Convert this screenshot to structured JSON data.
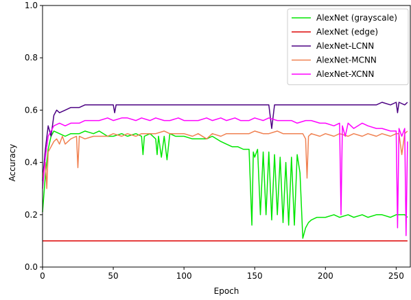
{
  "chart_data": {
    "type": "line",
    "xlabel": "Epoch",
    "ylabel": "Accuracy",
    "xlim": [
      0,
      260
    ],
    "ylim": [
      0.0,
      1.0
    ],
    "xticks": [
      0,
      50,
      100,
      150,
      200,
      250
    ],
    "xtick_labels": [
      "0",
      "50",
      "100",
      "150",
      "200",
      "250"
    ],
    "yticks": [
      0.0,
      0.2,
      0.4,
      0.6,
      0.8,
      1.0
    ],
    "ytick_labels": [
      "0.0",
      "0.2",
      "0.4",
      "0.6",
      "0.8",
      "1.0"
    ],
    "grid": false,
    "legend_position": "top-right",
    "series": [
      {
        "name": "AlexNet (grayscale)",
        "color": "#00e600",
        "x": [
          0,
          2,
          4,
          6,
          8,
          12,
          16,
          20,
          26,
          30,
          36,
          40,
          46,
          50,
          56,
          60,
          66,
          70,
          71,
          72,
          76,
          80,
          81,
          82,
          84,
          86,
          88,
          90,
          94,
          100,
          106,
          110,
          116,
          120,
          126,
          130,
          134,
          138,
          142,
          146,
          148,
          149,
          150,
          152,
          154,
          156,
          158,
          160,
          162,
          164,
          166,
          168,
          170,
          172,
          174,
          176,
          178,
          180,
          182,
          184,
          186,
          188,
          190,
          194,
          200,
          206,
          210,
          216,
          220,
          226,
          230,
          236,
          240,
          246,
          250,
          256,
          258
        ],
        "y": [
          0.21,
          0.35,
          0.45,
          0.5,
          0.52,
          0.51,
          0.5,
          0.51,
          0.51,
          0.52,
          0.51,
          0.52,
          0.5,
          0.5,
          0.51,
          0.5,
          0.51,
          0.5,
          0.43,
          0.5,
          0.51,
          0.49,
          0.43,
          0.5,
          0.42,
          0.5,
          0.41,
          0.51,
          0.5,
          0.5,
          0.49,
          0.49,
          0.49,
          0.5,
          0.48,
          0.47,
          0.46,
          0.46,
          0.45,
          0.45,
          0.16,
          0.44,
          0.42,
          0.45,
          0.2,
          0.44,
          0.2,
          0.44,
          0.18,
          0.43,
          0.2,
          0.42,
          0.17,
          0.4,
          0.16,
          0.42,
          0.16,
          0.43,
          0.36,
          0.11,
          0.15,
          0.17,
          0.18,
          0.19,
          0.19,
          0.2,
          0.19,
          0.2,
          0.19,
          0.2,
          0.19,
          0.2,
          0.2,
          0.19,
          0.2,
          0.2,
          0.19
        ]
      },
      {
        "name": "AlexNet (edge)",
        "color": "#dd0000",
        "x": [
          0,
          20,
          40,
          60,
          80,
          100,
          120,
          140,
          160,
          180,
          200,
          220,
          240,
          258
        ],
        "y": [
          0.1,
          0.1,
          0.1,
          0.1,
          0.1,
          0.1,
          0.1,
          0.1,
          0.1,
          0.1,
          0.1,
          0.1,
          0.1,
          0.1
        ]
      },
      {
        "name": "AlexNet-LCNN",
        "color": "#4b0082",
        "x": [
          0,
          2,
          4,
          6,
          8,
          10,
          12,
          16,
          20,
          26,
          30,
          36,
          40,
          46,
          50,
          51,
          52,
          56,
          60,
          66,
          70,
          76,
          80,
          86,
          90,
          96,
          100,
          106,
          110,
          116,
          120,
          126,
          130,
          136,
          140,
          146,
          150,
          156,
          160,
          162,
          164,
          166,
          170,
          176,
          180,
          186,
          190,
          196,
          200,
          206,
          210,
          216,
          220,
          226,
          230,
          236,
          240,
          246,
          250,
          251,
          252,
          256,
          258
        ],
        "y": [
          0.33,
          0.45,
          0.54,
          0.5,
          0.58,
          0.6,
          0.59,
          0.6,
          0.61,
          0.61,
          0.62,
          0.62,
          0.62,
          0.62,
          0.62,
          0.59,
          0.62,
          0.62,
          0.62,
          0.62,
          0.62,
          0.62,
          0.62,
          0.62,
          0.62,
          0.62,
          0.62,
          0.62,
          0.62,
          0.62,
          0.62,
          0.62,
          0.62,
          0.62,
          0.62,
          0.62,
          0.62,
          0.62,
          0.62,
          0.53,
          0.62,
          0.62,
          0.62,
          0.62,
          0.62,
          0.62,
          0.62,
          0.62,
          0.62,
          0.62,
          0.62,
          0.62,
          0.62,
          0.62,
          0.62,
          0.62,
          0.63,
          0.62,
          0.63,
          0.59,
          0.63,
          0.62,
          0.63
        ]
      },
      {
        "name": "AlexNet-MCNN",
        "color": "#f08050",
        "x": [
          0,
          2,
          3,
          4,
          6,
          8,
          10,
          12,
          14,
          16,
          20,
          24,
          25,
          26,
          30,
          36,
          40,
          46,
          50,
          56,
          60,
          66,
          70,
          76,
          80,
          86,
          90,
          96,
          100,
          106,
          110,
          116,
          120,
          126,
          130,
          136,
          140,
          146,
          150,
          156,
          160,
          166,
          170,
          176,
          180,
          184,
          186,
          187,
          188,
          190,
          196,
          200,
          206,
          210,
          216,
          220,
          226,
          230,
          236,
          240,
          246,
          250,
          252,
          254,
          256,
          258
        ],
        "y": [
          0.34,
          0.4,
          0.3,
          0.44,
          0.46,
          0.48,
          0.49,
          0.47,
          0.5,
          0.47,
          0.49,
          0.5,
          0.38,
          0.5,
          0.49,
          0.5,
          0.5,
          0.5,
          0.51,
          0.5,
          0.51,
          0.5,
          0.51,
          0.51,
          0.51,
          0.52,
          0.51,
          0.51,
          0.51,
          0.5,
          0.51,
          0.49,
          0.51,
          0.5,
          0.51,
          0.51,
          0.51,
          0.51,
          0.52,
          0.51,
          0.51,
          0.52,
          0.51,
          0.51,
          0.51,
          0.51,
          0.49,
          0.34,
          0.5,
          0.51,
          0.5,
          0.51,
          0.5,
          0.51,
          0.5,
          0.51,
          0.5,
          0.51,
          0.5,
          0.51,
          0.5,
          0.51,
          0.51,
          0.43,
          0.51,
          0.52
        ]
      },
      {
        "name": "AlexNet-XCNN",
        "color": "#ff00ff",
        "x": [
          0,
          2,
          4,
          6,
          8,
          12,
          16,
          20,
          26,
          30,
          36,
          40,
          46,
          50,
          56,
          60,
          66,
          70,
          76,
          80,
          86,
          90,
          96,
          100,
          106,
          110,
          116,
          120,
          126,
          130,
          136,
          140,
          146,
          150,
          156,
          160,
          166,
          170,
          176,
          180,
          186,
          190,
          196,
          200,
          206,
          210,
          211,
          212,
          214,
          216,
          220,
          226,
          230,
          236,
          240,
          246,
          250,
          251,
          252,
          254,
          256,
          257,
          258
        ],
        "y": [
          0.3,
          0.42,
          0.5,
          0.52,
          0.54,
          0.55,
          0.54,
          0.55,
          0.55,
          0.56,
          0.56,
          0.56,
          0.57,
          0.56,
          0.57,
          0.57,
          0.56,
          0.57,
          0.56,
          0.57,
          0.56,
          0.56,
          0.57,
          0.56,
          0.56,
          0.56,
          0.57,
          0.56,
          0.57,
          0.56,
          0.57,
          0.56,
          0.56,
          0.57,
          0.56,
          0.57,
          0.56,
          0.56,
          0.56,
          0.55,
          0.56,
          0.56,
          0.55,
          0.55,
          0.54,
          0.55,
          0.2,
          0.54,
          0.5,
          0.55,
          0.53,
          0.55,
          0.54,
          0.53,
          0.53,
          0.52,
          0.52,
          0.15,
          0.53,
          0.5,
          0.53,
          0.12,
          0.48
        ]
      }
    ]
  }
}
